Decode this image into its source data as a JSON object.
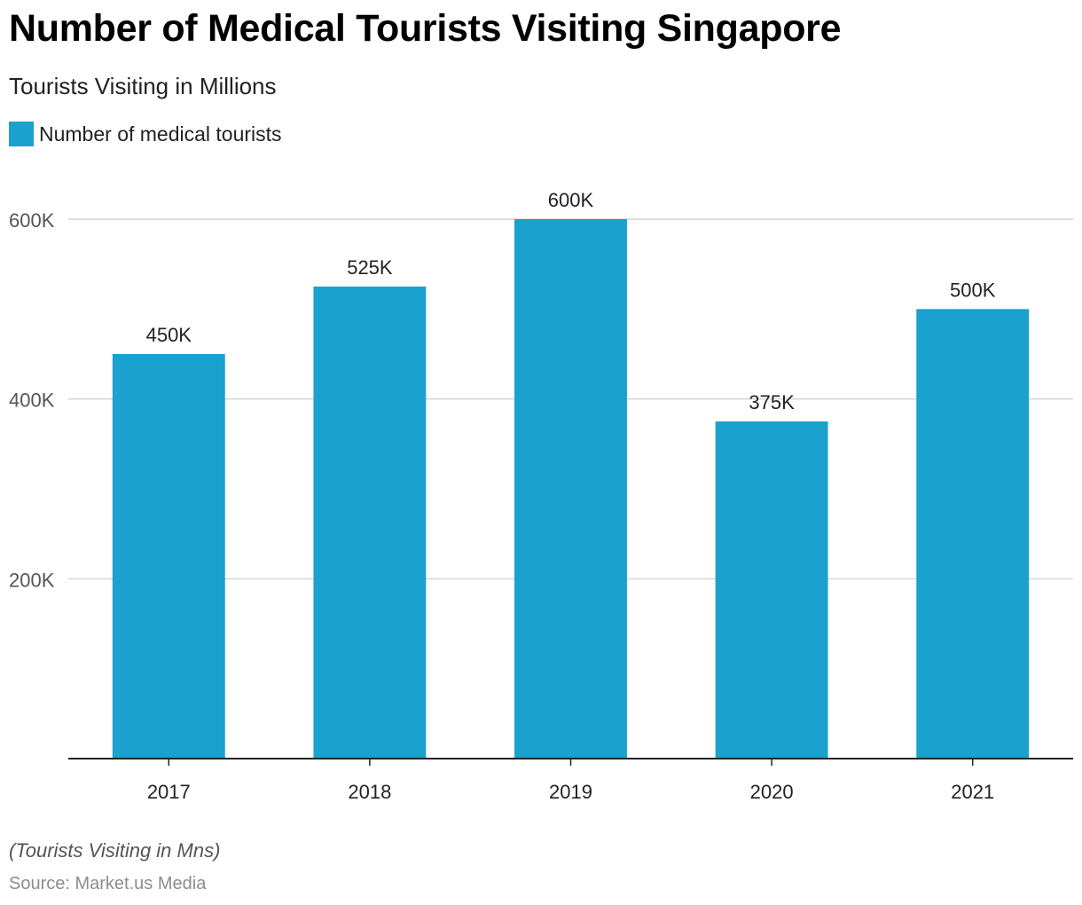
{
  "header": {
    "title": "Number of Medical Tourists Visiting Singapore",
    "subtitle": "Tourists Visiting in Millions"
  },
  "legend": {
    "label": "Number of medical tourists",
    "color": "#1aa1cd"
  },
  "chart_data": {
    "type": "bar",
    "title": "Number of Medical Tourists Visiting Singapore",
    "subtitle": "Tourists Visiting in Millions",
    "categories": [
      "2017",
      "2018",
      "2019",
      "2020",
      "2021"
    ],
    "series": [
      {
        "name": "Number of medical tourists",
        "values": [
          450000,
          525000,
          600000,
          375000,
          500000
        ],
        "labels": [
          "450K",
          "525K",
          "600K",
          "375K",
          "500K"
        ],
        "color": "#1aa1cd"
      }
    ],
    "ylim": [
      0,
      600000
    ],
    "yticks": [
      200000,
      400000,
      600000
    ],
    "ytick_labels": [
      "200K",
      "400K",
      "600K"
    ],
    "xlabel": "",
    "ylabel": "",
    "grid": true,
    "legend_position": "top-left"
  },
  "footer": {
    "note": "(Tourists Visiting in Mns)",
    "source": "Source: Market.us Media"
  }
}
